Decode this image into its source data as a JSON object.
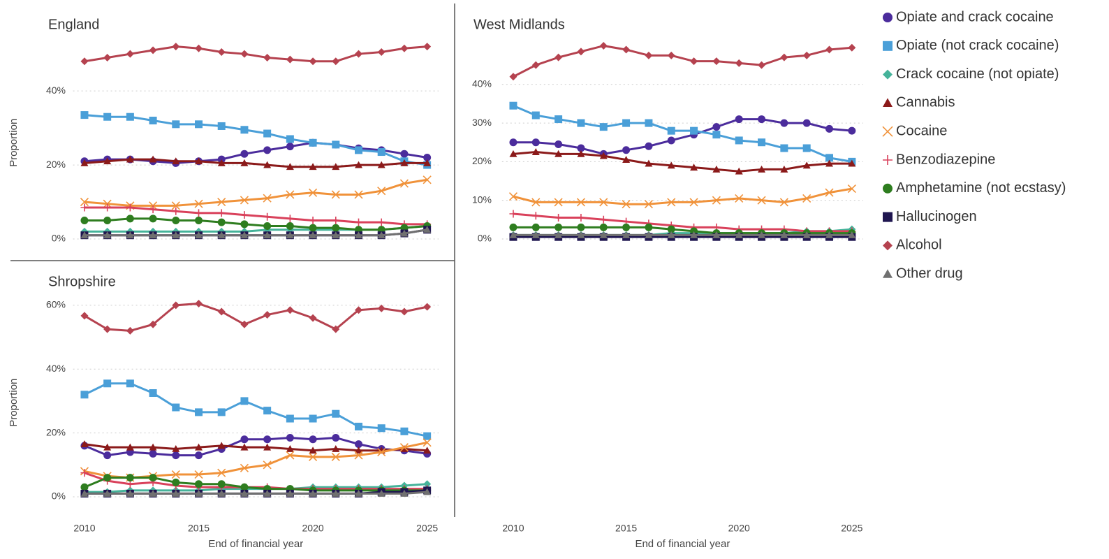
{
  "legend": {
    "position": "right",
    "items": [
      {
        "name": "Opiate and crack cocaine",
        "color": "#4b2c9c",
        "marker": "circle"
      },
      {
        "name": "Opiate (not crack cocaine)",
        "color": "#4a9fd8",
        "marker": "square"
      },
      {
        "name": "Crack cocaine (not opiate)",
        "color": "#45b39a",
        "marker": "diamond"
      },
      {
        "name": "Cannabis",
        "color": "#8b1a1a",
        "marker": "triangle"
      },
      {
        "name": "Cocaine",
        "color": "#f0923a",
        "marker": "x"
      },
      {
        "name": "Benzodiazepine",
        "color": "#d9415b",
        "marker": "plus"
      },
      {
        "name": "Amphetamine (not ecstasy)",
        "color": "#2e7d1f",
        "marker": "circle"
      },
      {
        "name": "Hallucinogen",
        "color": "#1f1650",
        "marker": "square"
      },
      {
        "name": "Alcohol",
        "color": "#b5424f",
        "marker": "diamond"
      },
      {
        "name": "Other drug",
        "color": "#707070",
        "marker": "triangle"
      }
    ]
  },
  "chart_data": [
    {
      "type": "line",
      "title": "England",
      "ylabel": "Proportion",
      "grid": true,
      "x": [
        2010,
        2011,
        2012,
        2013,
        2014,
        2015,
        2016,
        2017,
        2018,
        2019,
        2020,
        2021,
        2022,
        2023,
        2024,
        2025
      ],
      "xlim": [
        2009.5,
        2025.5
      ],
      "ylim": [
        -2,
        54
      ],
      "yticks": [
        {
          "value": 0,
          "label": "0%"
        },
        {
          "value": 20,
          "label": "20%"
        },
        {
          "value": 40,
          "label": "40%"
        }
      ],
      "series": [
        {
          "values": [
            21,
            21.5,
            21.5,
            21,
            20.5,
            21,
            21.5,
            23,
            24,
            25,
            26,
            25.5,
            24.5,
            24,
            23,
            22
          ]
        },
        {
          "values": [
            33.5,
            33,
            33,
            32,
            31,
            31,
            30.5,
            29.5,
            28.5,
            27,
            26,
            25.5,
            24,
            23.5,
            21,
            20
          ]
        },
        {
          "values": [
            2,
            2,
            2,
            2,
            2,
            2,
            2,
            2,
            2.5,
            2.5,
            2.5,
            2.5,
            2.5,
            2.5,
            3,
            3.5
          ]
        },
        {
          "values": [
            20.5,
            21,
            21.5,
            21.5,
            21,
            21,
            20.5,
            20.5,
            20,
            19.5,
            19.5,
            19.5,
            20,
            20,
            20.5,
            20.5
          ]
        },
        {
          "values": [
            10,
            9.5,
            9,
            9,
            9,
            9.5,
            10,
            10.5,
            11,
            12,
            12.5,
            12,
            12,
            13,
            15,
            16
          ]
        },
        {
          "values": [
            8.5,
            8.5,
            8.5,
            8,
            7.5,
            7,
            7,
            6.5,
            6,
            5.5,
            5,
            5,
            4.5,
            4.5,
            4,
            4
          ]
        },
        {
          "values": [
            5,
            5,
            5.5,
            5.5,
            5,
            5,
            4.5,
            4,
            3.5,
            3.5,
            3,
            3,
            2.5,
            2.5,
            3,
            3.5
          ]
        },
        {
          "values": [
            1,
            1,
            1,
            1,
            1,
            1,
            1,
            1,
            1,
            1,
            1,
            1,
            1,
            1,
            1.5,
            2.5
          ]
        },
        {
          "values": [
            48,
            49,
            50,
            51,
            52,
            51.5,
            50.5,
            50,
            49,
            48.5,
            48,
            48,
            50,
            50.5,
            51.5,
            52
          ]
        },
        {
          "values": [
            1,
            1,
            1,
            1,
            1,
            1,
            1,
            1,
            1,
            1,
            1,
            1,
            1,
            1,
            1.5,
            2.5
          ]
        }
      ]
    },
    {
      "type": "line",
      "title": "West Midlands",
      "xlabel": "End of financial year",
      "grid": true,
      "x": [
        2010,
        2011,
        2012,
        2013,
        2014,
        2015,
        2016,
        2017,
        2018,
        2019,
        2020,
        2021,
        2022,
        2023,
        2024,
        2025
      ],
      "xlim": [
        2009.5,
        2025.5
      ],
      "xticks": [
        2010,
        2015,
        2020,
        2025
      ],
      "ylim": [
        -2,
        51
      ],
      "yticks": [
        {
          "value": 0,
          "label": "0%"
        },
        {
          "value": 10,
          "label": "10%"
        },
        {
          "value": 20,
          "label": "20%"
        },
        {
          "value": 30,
          "label": "30%"
        },
        {
          "value": 40,
          "label": "40%"
        }
      ],
      "series": [
        {
          "values": [
            25,
            25,
            24.5,
            23.5,
            22,
            23,
            24,
            25.5,
            27,
            29,
            31,
            31,
            30,
            30,
            28.5,
            28
          ]
        },
        {
          "values": [
            34.5,
            32,
            31,
            30,
            29,
            30,
            30,
            28,
            28,
            27,
            25.5,
            25,
            23.5,
            23.5,
            21,
            20
          ]
        },
        {
          "values": [
            1,
            1,
            1,
            1,
            1,
            1,
            1,
            1.5,
            1.5,
            1.5,
            1.5,
            1.5,
            1.5,
            2,
            2,
            2.5
          ]
        },
        {
          "values": [
            22,
            22.5,
            22,
            22,
            21.5,
            20.5,
            19.5,
            19,
            18.5,
            18,
            17.5,
            18,
            18,
            19,
            19.5,
            19.5
          ]
        },
        {
          "values": [
            11,
            9.5,
            9.5,
            9.5,
            9.5,
            9,
            9,
            9.5,
            9.5,
            10,
            10.5,
            10,
            9.5,
            10.5,
            12,
            13
          ]
        },
        {
          "values": [
            6.5,
            6,
            5.5,
            5.5,
            5,
            4.5,
            4,
            3.5,
            3,
            3,
            2.5,
            2.5,
            2.5,
            2,
            2,
            2
          ]
        },
        {
          "values": [
            3,
            3,
            3,
            3,
            3,
            3,
            3,
            2.5,
            2,
            1.5,
            1.5,
            1.5,
            1.5,
            1.5,
            1.5,
            1.5
          ]
        },
        {
          "values": [
            0.5,
            0.5,
            0.5,
            0.5,
            0.5,
            0.5,
            0.5,
            0.5,
            0.5,
            0.5,
            0.5,
            0.5,
            0.5,
            0.5,
            0.5,
            0.5
          ]
        },
        {
          "values": [
            42,
            45,
            47,
            48.5,
            50,
            49,
            47.5,
            47.5,
            46,
            46,
            45.5,
            45,
            47,
            47.5,
            49,
            49.5
          ]
        },
        {
          "values": [
            1,
            1,
            1,
            1,
            1,
            1,
            1,
            1,
            1,
            1,
            1,
            1,
            1,
            1,
            1,
            1
          ]
        }
      ]
    },
    {
      "type": "line",
      "title": "Shropshire",
      "ylabel": "Proportion",
      "xlabel": "End of financial year",
      "grid": true,
      "x": [
        2010,
        2011,
        2012,
        2013,
        2014,
        2015,
        2016,
        2017,
        2018,
        2019,
        2020,
        2021,
        2022,
        2023,
        2024,
        2025
      ],
      "xlim": [
        2009.5,
        2025.5
      ],
      "xticks": [
        2010,
        2015,
        2020,
        2025
      ],
      "ylim": [
        -3,
        62
      ],
      "yticks": [
        {
          "value": 0,
          "label": "0%"
        },
        {
          "value": 20,
          "label": "20%"
        },
        {
          "value": 40,
          "label": "40%"
        },
        {
          "value": 60,
          "label": "60%"
        }
      ],
      "series": [
        {
          "values": [
            16,
            13,
            14,
            13.5,
            13,
            13,
            15,
            18,
            18,
            18.5,
            18,
            18.5,
            16.5,
            15,
            14.5,
            13.5
          ]
        },
        {
          "values": [
            32,
            35.5,
            35.5,
            32.5,
            28,
            26.5,
            26.5,
            30,
            27,
            24.5,
            24.5,
            26,
            22,
            21.5,
            20.5,
            19
          ]
        },
        {
          "values": [
            1.5,
            1.5,
            2,
            2,
            2,
            2,
            2.5,
            2.5,
            2.5,
            2.5,
            3,
            3,
            3,
            3,
            3.5,
            4
          ]
        },
        {
          "values": [
            16.5,
            15.5,
            15.5,
            15.5,
            15,
            15.5,
            16,
            15.5,
            15.5,
            15,
            14.5,
            15,
            14.5,
            14.5,
            15,
            14.5
          ]
        },
        {
          "values": [
            8,
            6.5,
            6,
            6.5,
            7,
            7,
            7.5,
            9,
            10,
            13,
            12.5,
            12.5,
            13,
            14,
            15.5,
            17
          ]
        },
        {
          "values": [
            7.5,
            5,
            4,
            4.5,
            3.5,
            3,
            3,
            3,
            3,
            2.5,
            2.5,
            2.5,
            2.5,
            2.5,
            2.5,
            2.5
          ]
        },
        {
          "values": [
            3,
            6,
            6,
            6,
            4.5,
            4,
            4,
            3,
            2.5,
            2.5,
            2,
            2,
            2,
            2,
            2,
            2
          ]
        },
        {
          "values": [
            1,
            1,
            1,
            1,
            1,
            1,
            1,
            1,
            1,
            1,
            1,
            1,
            1,
            1.5,
            1.5,
            2
          ]
        },
        {
          "values": [
            56.7,
            52.5,
            52,
            54,
            60,
            60.5,
            58,
            54,
            57,
            58.5,
            56,
            52.5,
            58.5,
            59,
            58,
            59.5
          ]
        },
        {
          "values": [
            1,
            1,
            1,
            1,
            1,
            1,
            1,
            1,
            1,
            1,
            1,
            1,
            1,
            1,
            1,
            1.5
          ]
        }
      ]
    }
  ]
}
